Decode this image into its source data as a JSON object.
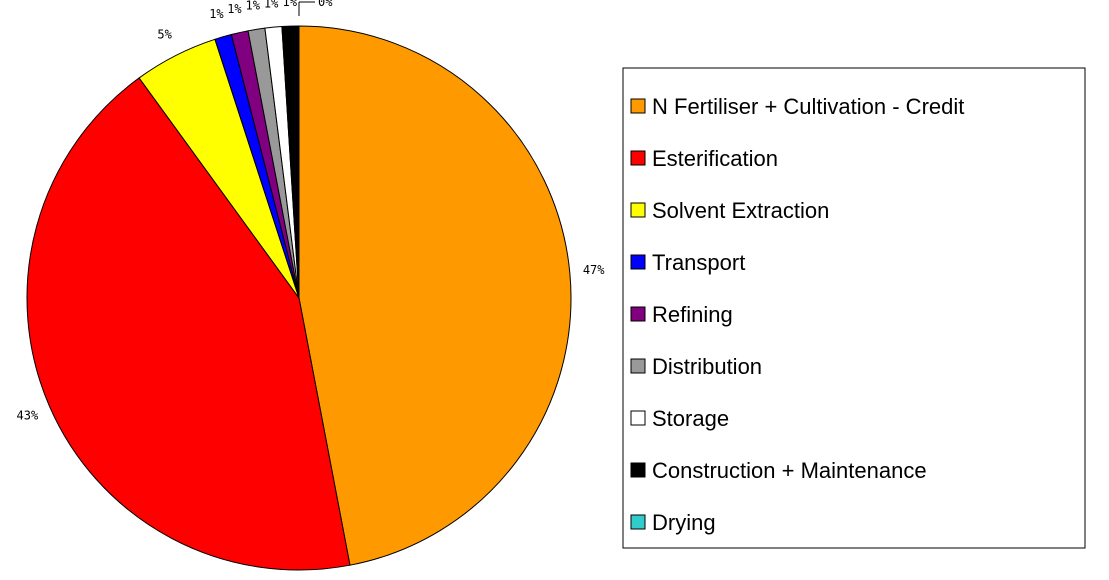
{
  "chart_data": {
    "type": "pie",
    "categories": [
      "N Fertiliser + Cultivation - Credit",
      "Esterification",
      "Solvent Extraction",
      "Transport",
      "Refining",
      "Distribution",
      "Storage",
      "Construction + Maintenance",
      "Drying"
    ],
    "values": [
      47,
      43,
      5,
      1,
      1,
      1,
      1,
      1,
      0
    ],
    "value_labels": [
      "47%",
      "43%",
      "5%",
      "1%",
      "1%",
      "1%",
      "1%",
      "1%",
      "0%"
    ],
    "colors": [
      "#ff9900",
      "#ff0000",
      "#ffff00",
      "#0000ff",
      "#800080",
      "#999999",
      "#ffffff",
      "#000000",
      "#33cccc"
    ],
    "legend": "right"
  }
}
